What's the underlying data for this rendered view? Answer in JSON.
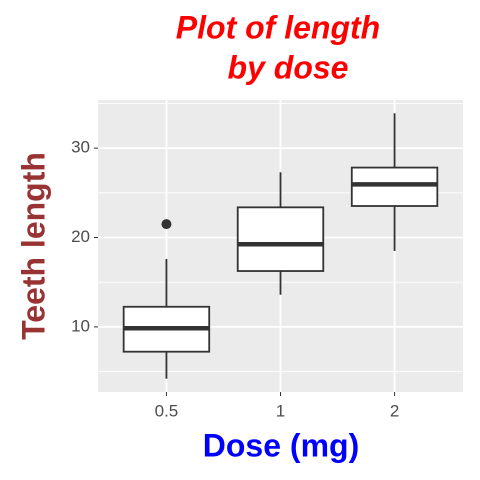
{
  "chart_data": {
    "type": "box",
    "title": [
      "Plot of length",
      "by dose"
    ],
    "x_label": "Dose (mg)",
    "y_label": "Teeth length",
    "title_color": "#ff0000",
    "x_label_color": "#0000ff",
    "y_label_color": "#993333",
    "categories": [
      "0.5",
      "1",
      "2"
    ],
    "min": [
      4.2,
      13.6,
      18.5
    ],
    "q1": [
      7.225,
      16.25,
      23.525
    ],
    "median": [
      9.85,
      19.25,
      25.95
    ],
    "q3": [
      12.25,
      23.375,
      27.825
    ],
    "max": [
      17.6,
      27.3,
      33.9
    ],
    "outliers": [
      [
        21.5
      ],
      [],
      []
    ],
    "ylim": [
      2.715,
      35.385
    ],
    "yticks": [
      10,
      20,
      30
    ],
    "minor_yticks": [
      5,
      15,
      25,
      35
    ],
    "grid": true
  }
}
